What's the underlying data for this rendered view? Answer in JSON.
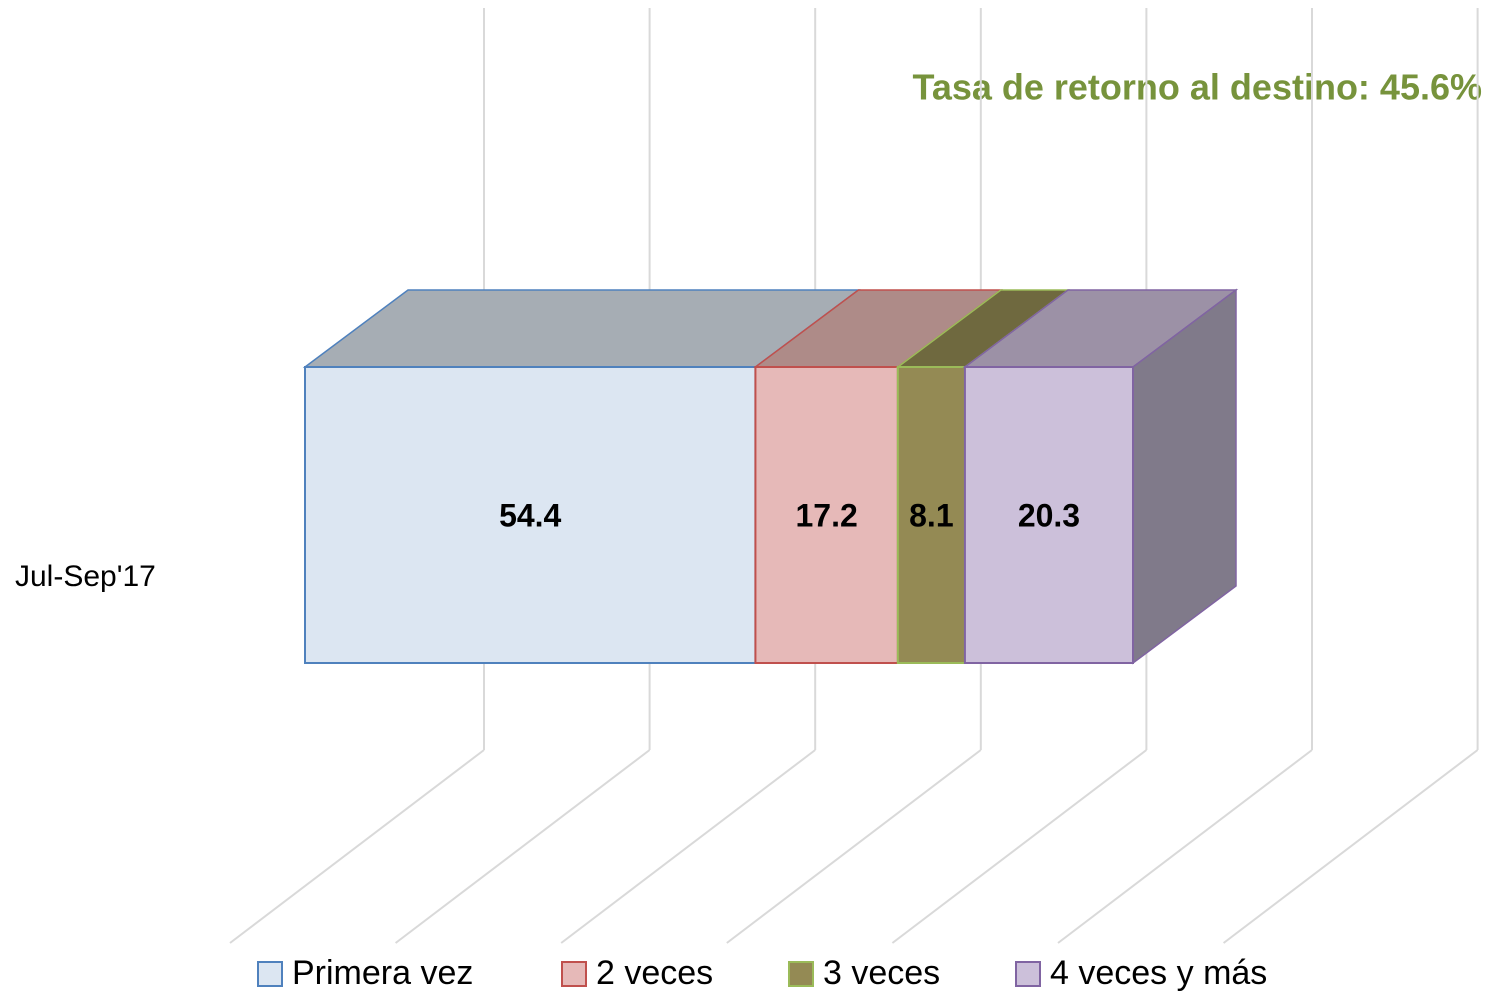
{
  "chart_data": {
    "type": "bar3d_stacked_horizontal",
    "title": "Tasa de retorno al destino: 45.6%",
    "categories": [
      "Jul-Sep'17"
    ],
    "series": [
      {
        "name": "Primera vez",
        "color": "#dce6f2",
        "values": [
          54.4
        ]
      },
      {
        "name": "2 veces",
        "color": "#e6b9b8",
        "values": [
          17.2
        ]
      },
      {
        "name": "3 veces",
        "color": "#948a54",
        "values": [
          8.1
        ]
      },
      {
        "name": "4 veces y más",
        "color": "#ccc0da",
        "values": [
          20.3
        ]
      }
    ],
    "xlim": [
      0,
      120
    ],
    "xticks": [
      0,
      20,
      40,
      60,
      80,
      100,
      120
    ],
    "grid": true,
    "legend": "bottom"
  }
}
